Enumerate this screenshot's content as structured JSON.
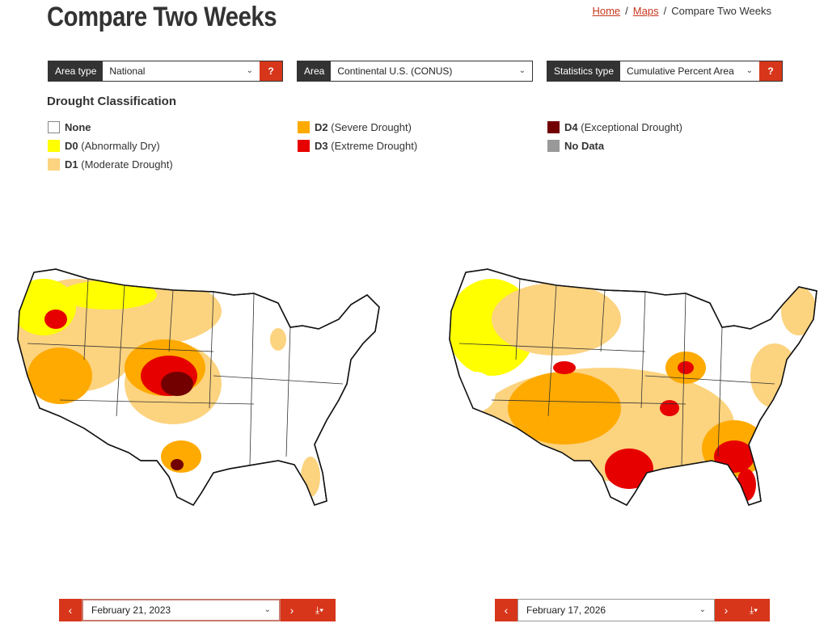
{
  "page": {
    "title": "Compare Two Weeks",
    "breadcrumb": [
      "Home",
      "Maps",
      "Compare Two Weeks"
    ]
  },
  "filters": [
    {
      "label": "Area type",
      "value": "National",
      "has_help": true
    },
    {
      "label": "Area",
      "value": "Continental U.S. (CONUS)",
      "has_help": false
    },
    {
      "label": "Statistics type",
      "value": "Cumulative Percent Area",
      "has_help": true
    }
  ],
  "help_label": "?",
  "legend": {
    "title": "Drought Classification",
    "items": [
      {
        "code": "None",
        "desc": "",
        "color": "#ffffff"
      },
      {
        "code": "D0",
        "desc": "(Abnormally Dry)",
        "color": "#ffff00"
      },
      {
        "code": "D1",
        "desc": "(Moderate Drought)",
        "color": "#fcd37f"
      },
      {
        "code": "D2",
        "desc": "(Severe Drought)",
        "color": "#ffaa00"
      },
      {
        "code": "D3",
        "desc": "(Extreme Drought)",
        "color": "#e60000"
      },
      {
        "code": "D4",
        "desc": "(Exceptional Drought)",
        "color": "#730000"
      },
      {
        "code": "No Data",
        "desc": "",
        "color": "#999999"
      }
    ]
  },
  "maps": [
    {
      "date": "February 21, 2023"
    },
    {
      "date": "February 17, 2026"
    }
  ],
  "colors": {
    "accent": "#d7361a",
    "dark": "#333333",
    "link": "#c8371d"
  }
}
